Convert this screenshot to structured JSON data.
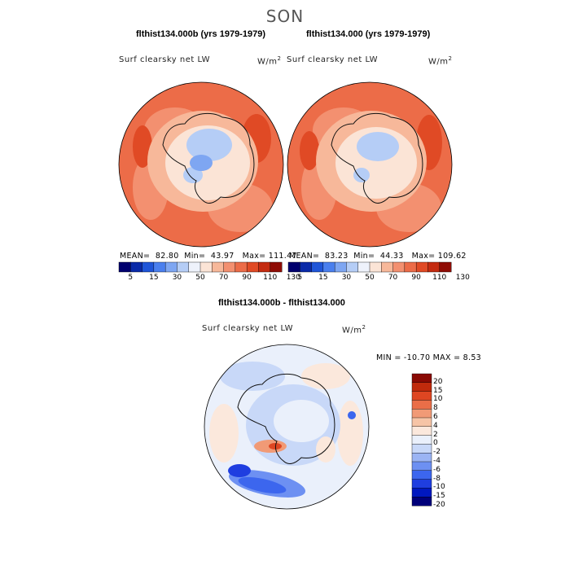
{
  "title": "SON",
  "colors": {
    "abs_levels": [
      "#00006e",
      "#0a2aa8",
      "#1f55d8",
      "#4a7fee",
      "#7ea6f2",
      "#b5cdf6",
      "#eef2fb",
      "#fbe4d6",
      "#f7b89a",
      "#f39070",
      "#ec6c48",
      "#e04a25",
      "#c42b10",
      "#8f0c05"
    ],
    "diff_levels": [
      "#00007a",
      "#0018c0",
      "#1f3ee0",
      "#3c66ee",
      "#6d90f2",
      "#9bb4f4",
      "#c8d8f8",
      "#eaf0fb",
      "#fbe8dc",
      "#f6c4a6",
      "#f19a76",
      "#ea6e48",
      "#de4622",
      "#c02a0c",
      "#8a0a04"
    ]
  },
  "chart_data": [
    {
      "type": "heatmap",
      "title": "flthist134.000b (yrs 1979-1979)",
      "variable": "Surf clearsky net LW",
      "units": "W/m",
      "units_sup": "2",
      "projection": "south-polar-stereographic",
      "stats": {
        "mean_label": "MEAN=",
        "mean": "82.80",
        "min_label": "Min=",
        "min": "43.97",
        "max_label": "Max=",
        "max": "111.47"
      },
      "colorbar": {
        "ticks": [
          "5",
          "15",
          "30",
          "50",
          "70",
          "90",
          "110",
          "130"
        ],
        "n_colors": 14
      }
    },
    {
      "type": "heatmap",
      "title": "flthist134.000 (yrs 1979-1979)",
      "variable": "Surf clearsky net LW",
      "units": "W/m",
      "units_sup": "2",
      "projection": "south-polar-stereographic",
      "stats": {
        "mean_label": "MEAN=",
        "mean": "83.23",
        "min_label": "Min=",
        "min": "44.33",
        "max_label": "Max=",
        "max": "109.62"
      },
      "colorbar": {
        "ticks": [
          "5",
          "15",
          "30",
          "50",
          "70",
          "90",
          "110",
          "130"
        ],
        "n_colors": 14
      }
    },
    {
      "type": "heatmap",
      "title": "flthist134.000b - flthist134.000",
      "variable": "Surf clearsky net LW",
      "units": "W/m",
      "units_sup": "2",
      "projection": "south-polar-stereographic",
      "stats_text": "MIN = -10.70 MAX =   8.53",
      "colorbar": {
        "ticks": [
          "20",
          "15",
          "10",
          "8",
          "6",
          "4",
          "2",
          "0",
          "-2",
          "-4",
          "-6",
          "-8",
          "-10",
          "-15",
          "-20"
        ]
      }
    }
  ]
}
